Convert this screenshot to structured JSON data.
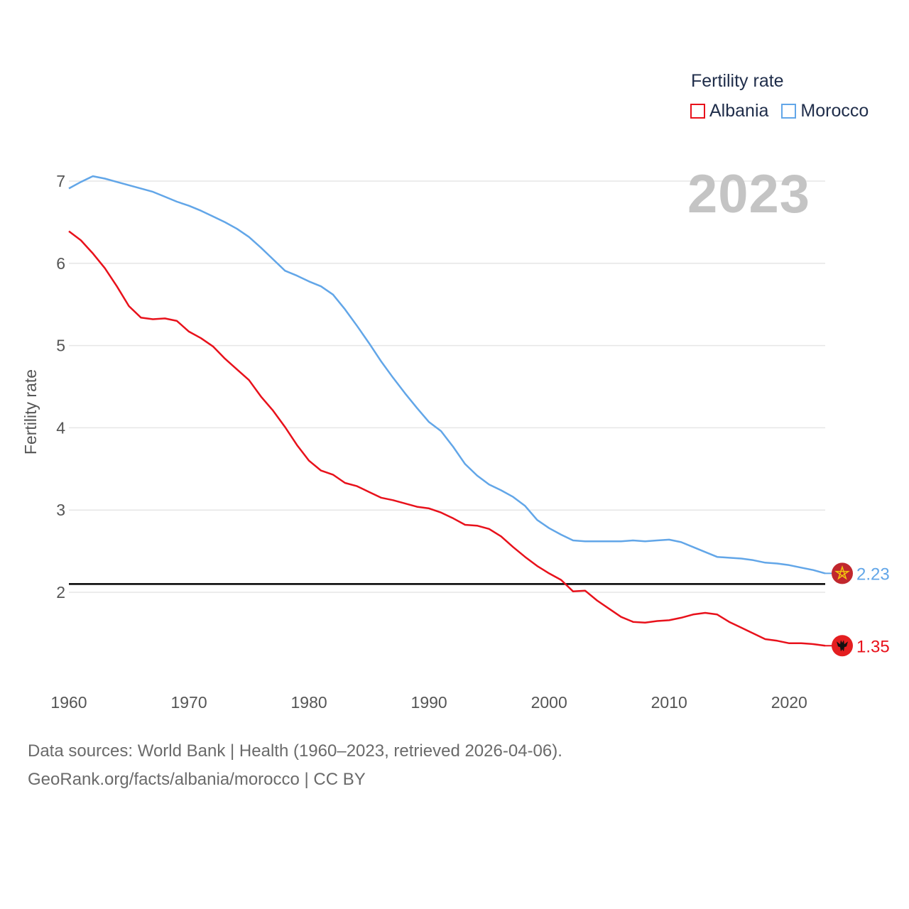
{
  "legend": {
    "title": "Fertility rate",
    "items": [
      {
        "name": "Albania",
        "color": "#e8111b"
      },
      {
        "name": "Morocco",
        "color": "#62a6e8"
      }
    ]
  },
  "year_stamp": "2023",
  "footer": {
    "line1": "Data sources: World Bank | Health (1960–2023, retrieved 2026-04-06).",
    "line2": "GeoRank.org/facts/albania/morocco | CC BY"
  },
  "flags": {
    "albania": "albania-flag-icon",
    "morocco": "morocco-flag-icon"
  },
  "chart_data": {
    "type": "line",
    "title": "",
    "xlabel": "",
    "ylabel": "Fertility rate",
    "xlim": [
      1960,
      2023
    ],
    "ylim": [
      1.0,
      7.1
    ],
    "xticks": [
      1960,
      1970,
      1980,
      1990,
      2000,
      2010,
      2020
    ],
    "yticks": [
      2,
      3,
      4,
      5,
      6,
      7
    ],
    "reference_line": 2.1,
    "x": [
      1960,
      1961,
      1962,
      1963,
      1964,
      1965,
      1966,
      1967,
      1968,
      1969,
      1970,
      1971,
      1972,
      1973,
      1974,
      1975,
      1976,
      1977,
      1978,
      1979,
      1980,
      1981,
      1982,
      1983,
      1984,
      1985,
      1986,
      1987,
      1988,
      1989,
      1990,
      1991,
      1992,
      1993,
      1994,
      1995,
      1996,
      1997,
      1998,
      1999,
      2000,
      2001,
      2002,
      2003,
      2004,
      2005,
      2006,
      2007,
      2008,
      2009,
      2010,
      2011,
      2012,
      2013,
      2014,
      2015,
      2016,
      2017,
      2018,
      2019,
      2020,
      2021,
      2022,
      2023
    ],
    "series": [
      {
        "name": "Albania",
        "color": "#e8111b",
        "end_label": "1.35",
        "values": [
          6.39,
          6.28,
          6.12,
          5.94,
          5.72,
          5.48,
          5.34,
          5.32,
          5.33,
          5.3,
          5.17,
          5.09,
          4.99,
          4.84,
          4.71,
          4.58,
          4.38,
          4.21,
          4.01,
          3.79,
          3.6,
          3.48,
          3.43,
          3.33,
          3.29,
          3.22,
          3.15,
          3.12,
          3.08,
          3.04,
          3.02,
          2.97,
          2.9,
          2.82,
          2.81,
          2.77,
          2.68,
          2.55,
          2.43,
          2.32,
          2.23,
          2.15,
          2.01,
          2.02,
          1.9,
          1.8,
          1.7,
          1.64,
          1.63,
          1.65,
          1.66,
          1.69,
          1.73,
          1.75,
          1.73,
          1.64,
          1.57,
          1.5,
          1.43,
          1.41,
          1.38,
          1.38,
          1.37,
          1.35
        ]
      },
      {
        "name": "Morocco",
        "color": "#62a6e8",
        "end_label": "2.23",
        "values": [
          6.91,
          6.99,
          7.06,
          7.03,
          6.99,
          6.95,
          6.91,
          6.87,
          6.81,
          6.75,
          6.7,
          6.64,
          6.57,
          6.5,
          6.42,
          6.32,
          6.19,
          6.05,
          5.91,
          5.85,
          5.78,
          5.72,
          5.62,
          5.44,
          5.24,
          5.03,
          4.81,
          4.61,
          4.42,
          4.24,
          4.07,
          3.96,
          3.77,
          3.56,
          3.42,
          3.31,
          3.24,
          3.16,
          3.05,
          2.88,
          2.78,
          2.7,
          2.63,
          2.62,
          2.62,
          2.62,
          2.62,
          2.63,
          2.62,
          2.63,
          2.64,
          2.61,
          2.55,
          2.49,
          2.43,
          2.42,
          2.41,
          2.39,
          2.36,
          2.35,
          2.33,
          2.3,
          2.27,
          2.23
        ]
      }
    ]
  }
}
